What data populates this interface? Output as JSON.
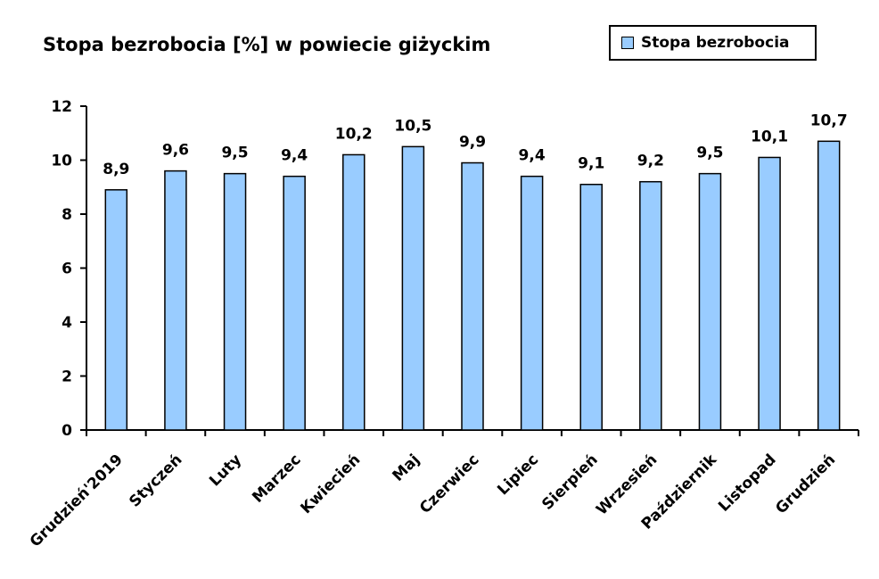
{
  "chart_data": {
    "type": "bar",
    "title": "Stopa bezrobocia [%] w powiecie giżyckim",
    "xlabel": "",
    "ylabel": "",
    "ylim": [
      0,
      12
    ],
    "yticks": [
      "0",
      "2",
      "4",
      "6",
      "8",
      "10",
      "12"
    ],
    "grid": false,
    "legend_position": "top-right",
    "categories": [
      "Grudzień'2019",
      "Styczeń",
      "Luty",
      "Marzec",
      "Kwiecień",
      "Maj",
      "Czerwiec",
      "Lipiec",
      "Sierpień",
      "Wrzesień",
      "Październik",
      "Listopad",
      "Grudzień"
    ],
    "series": [
      {
        "name": "Stopa bezrobocia",
        "color": "#99ccff",
        "values": [
          8.9,
          9.6,
          9.5,
          9.4,
          10.2,
          10.5,
          9.9,
          9.4,
          9.1,
          9.2,
          9.5,
          10.1,
          10.7
        ],
        "labels": [
          "8,9",
          "9,6",
          "9,5",
          "9,4",
          "10,2",
          "10,5",
          "9,9",
          "9,4",
          "9,1",
          "9,2",
          "9,5",
          "10,1",
          "10,7"
        ]
      }
    ]
  }
}
